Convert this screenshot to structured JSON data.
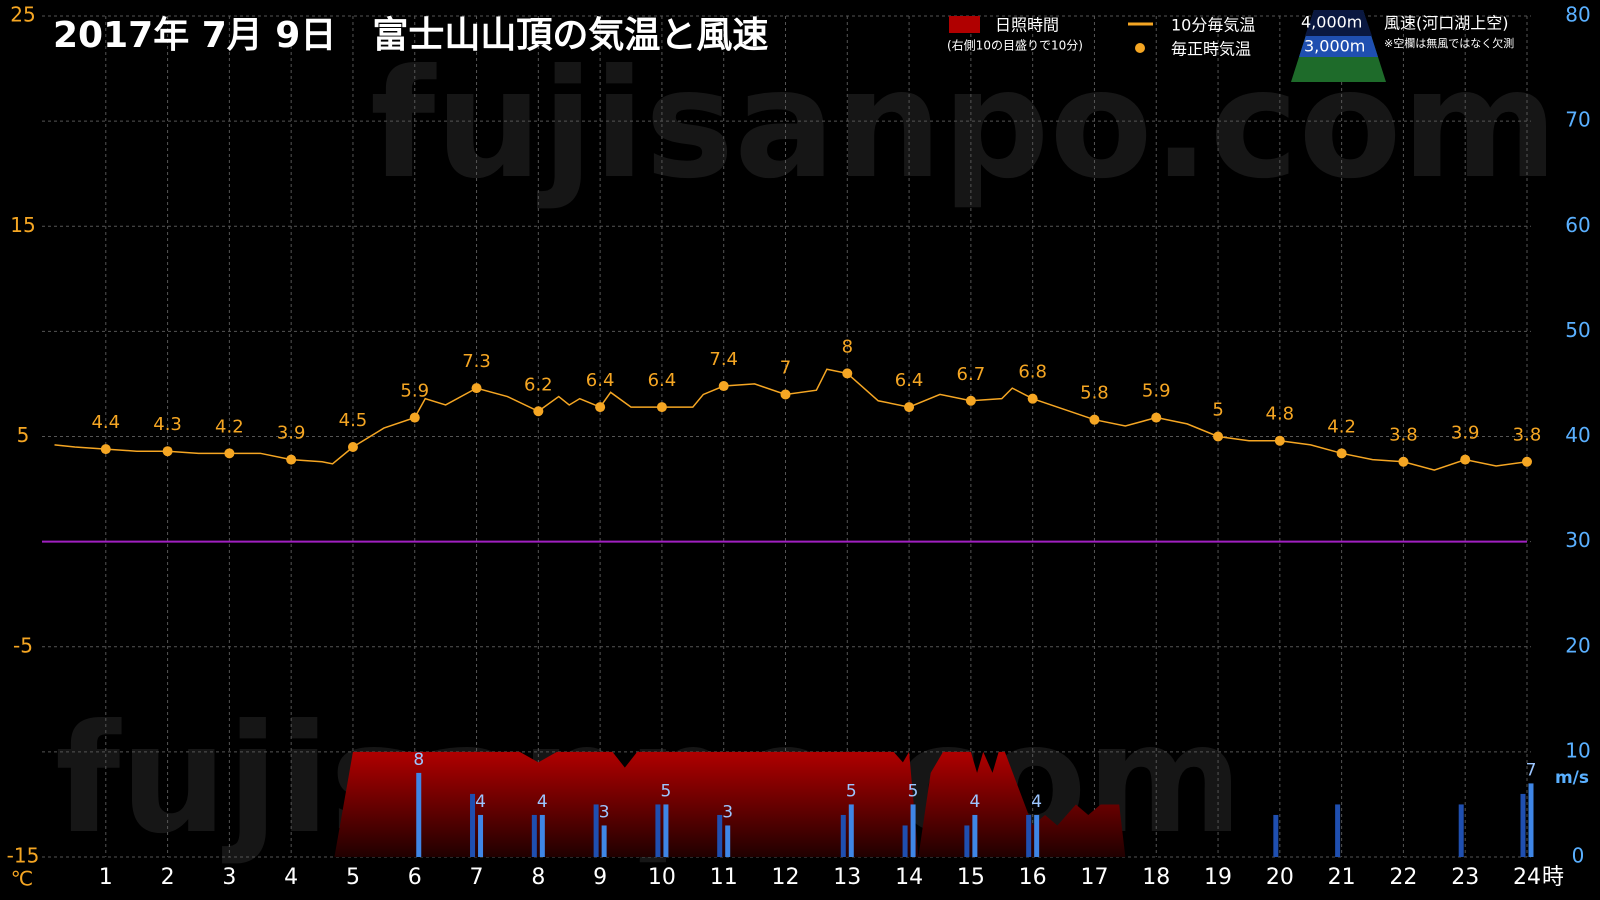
{
  "chart_data": {
    "type": "combo",
    "title": "2017年 7月 9日　富士山山頂の気温と風速",
    "watermark": "fujisanpo.com",
    "xlim": [
      0,
      24
    ],
    "xticks": [
      1,
      2,
      3,
      4,
      5,
      6,
      7,
      8,
      9,
      10,
      11,
      12,
      13,
      14,
      15,
      16,
      17,
      18,
      19,
      20,
      21,
      22,
      23,
      24
    ],
    "x_unit": "時",
    "ylim": [
      -15,
      25
    ],
    "yticks": [
      -15,
      -5,
      5,
      15,
      25
    ],
    "y_unit": "℃",
    "y2lim": [
      0,
      80
    ],
    "y2ticks": [
      0,
      10,
      20,
      30,
      40,
      50,
      60,
      70,
      80
    ],
    "y2_unit": "m/s",
    "grid": true,
    "legend_notes": {
      "sunshine": "(右側10の目盛りで10分)",
      "wind": "風速(河口湖上空)",
      "missing": "※空欄は無風ではなく欠測"
    },
    "series": [
      {
        "name": "日照時間",
        "type": "area",
        "axis": "y2",
        "color": "#b00000",
        "x": [
          4.7,
          5.0,
          7.7,
          8.0,
          8.3,
          9.2,
          9.4,
          9.6,
          13.75,
          13.9,
          14.0,
          14.15,
          14.35,
          14.55,
          15.0,
          15.1,
          15.2,
          15.35,
          15.45,
          15.55,
          16.0,
          16.2,
          16.4,
          16.7,
          16.9,
          17.1,
          17.4,
          17.5
        ],
        "values": [
          0,
          10,
          10,
          9,
          10,
          10,
          8.5,
          10,
          10,
          9,
          10,
          0,
          8,
          10,
          10,
          8,
          10,
          8,
          10,
          10,
          3,
          4,
          3,
          5,
          4,
          5,
          5,
          0
        ]
      },
      {
        "name": "10分毎気温",
        "type": "line",
        "axis": "y",
        "color": "#f5a623",
        "x": [
          0.17,
          0.5,
          1,
          1.5,
          2,
          2.5,
          3,
          3.5,
          4,
          4.5,
          4.67,
          5,
          5.5,
          6,
          6.17,
          6.5,
          7,
          7.5,
          8,
          8.33,
          8.5,
          8.67,
          9,
          9.17,
          9.5,
          10,
          10.5,
          10.67,
          11,
          11.5,
          12,
          12.5,
          12.67,
          13,
          13.5,
          14,
          14.5,
          15,
          15.5,
          15.67,
          16,
          16.5,
          17,
          17.5,
          18,
          18.5,
          19,
          19.5,
          20,
          20.5,
          21,
          21.5,
          22,
          22.5,
          23,
          23.5,
          24
        ],
        "values": [
          4.6,
          4.5,
          4.4,
          4.3,
          4.3,
          4.2,
          4.2,
          4.2,
          3.9,
          3.8,
          3.7,
          4.5,
          5.4,
          5.9,
          6.8,
          6.5,
          7.3,
          6.9,
          6.2,
          6.9,
          6.5,
          6.8,
          6.4,
          7.1,
          6.4,
          6.4,
          6.4,
          7.0,
          7.4,
          7.5,
          7.0,
          7.2,
          8.2,
          8.0,
          6.7,
          6.4,
          7.0,
          6.7,
          6.8,
          7.3,
          6.8,
          6.3,
          5.8,
          5.5,
          5.9,
          5.6,
          5.0,
          4.8,
          4.8,
          4.6,
          4.2,
          3.9,
          3.8,
          3.4,
          3.9,
          3.6,
          3.8
        ]
      },
      {
        "name": "毎正時気温",
        "type": "scatter",
        "axis": "y",
        "color": "#f5a623",
        "show_labels": true,
        "x": [
          1,
          2,
          3,
          4,
          5,
          6,
          7,
          8,
          9,
          10,
          11,
          12,
          13,
          14,
          15,
          16,
          17,
          18,
          19,
          20,
          21,
          22,
          23,
          24
        ],
        "values": [
          4.4,
          4.3,
          4.2,
          3.9,
          4.5,
          5.9,
          7.3,
          6.2,
          6.4,
          6.4,
          7.4,
          7,
          8,
          6.4,
          6.7,
          6.8,
          5.8,
          5.9,
          5,
          4.8,
          4.2,
          3.8,
          3.9,
          3.8
        ]
      },
      {
        "name": "3,000m",
        "type": "bar",
        "axis": "y2",
        "color": "#1f4fb0",
        "offset": -1,
        "show_labels": false,
        "x": [
          1,
          2,
          3,
          4,
          5,
          6,
          7,
          8,
          9,
          10,
          11,
          12,
          13,
          14,
          15,
          16,
          17,
          18,
          19,
          20,
          21,
          22,
          23,
          24
        ],
        "values": [
          null,
          null,
          null,
          null,
          null,
          null,
          6,
          4,
          5,
          5,
          4,
          null,
          4,
          3,
          3,
          4,
          null,
          null,
          null,
          4,
          5,
          null,
          5,
          6
        ]
      },
      {
        "name": "4,000m",
        "type": "bar",
        "axis": "y2",
        "color": "#3f86e6",
        "offset": 1,
        "show_labels": true,
        "x": [
          1,
          2,
          3,
          4,
          5,
          6,
          7,
          8,
          9,
          10,
          11,
          12,
          13,
          14,
          15,
          16,
          17,
          18,
          19,
          20,
          21,
          22,
          23,
          24
        ],
        "values": [
          null,
          null,
          null,
          null,
          null,
          8,
          4,
          4,
          3,
          5,
          3,
          null,
          5,
          5,
          4,
          4,
          null,
          null,
          null,
          null,
          null,
          null,
          null,
          7
        ]
      }
    ]
  }
}
